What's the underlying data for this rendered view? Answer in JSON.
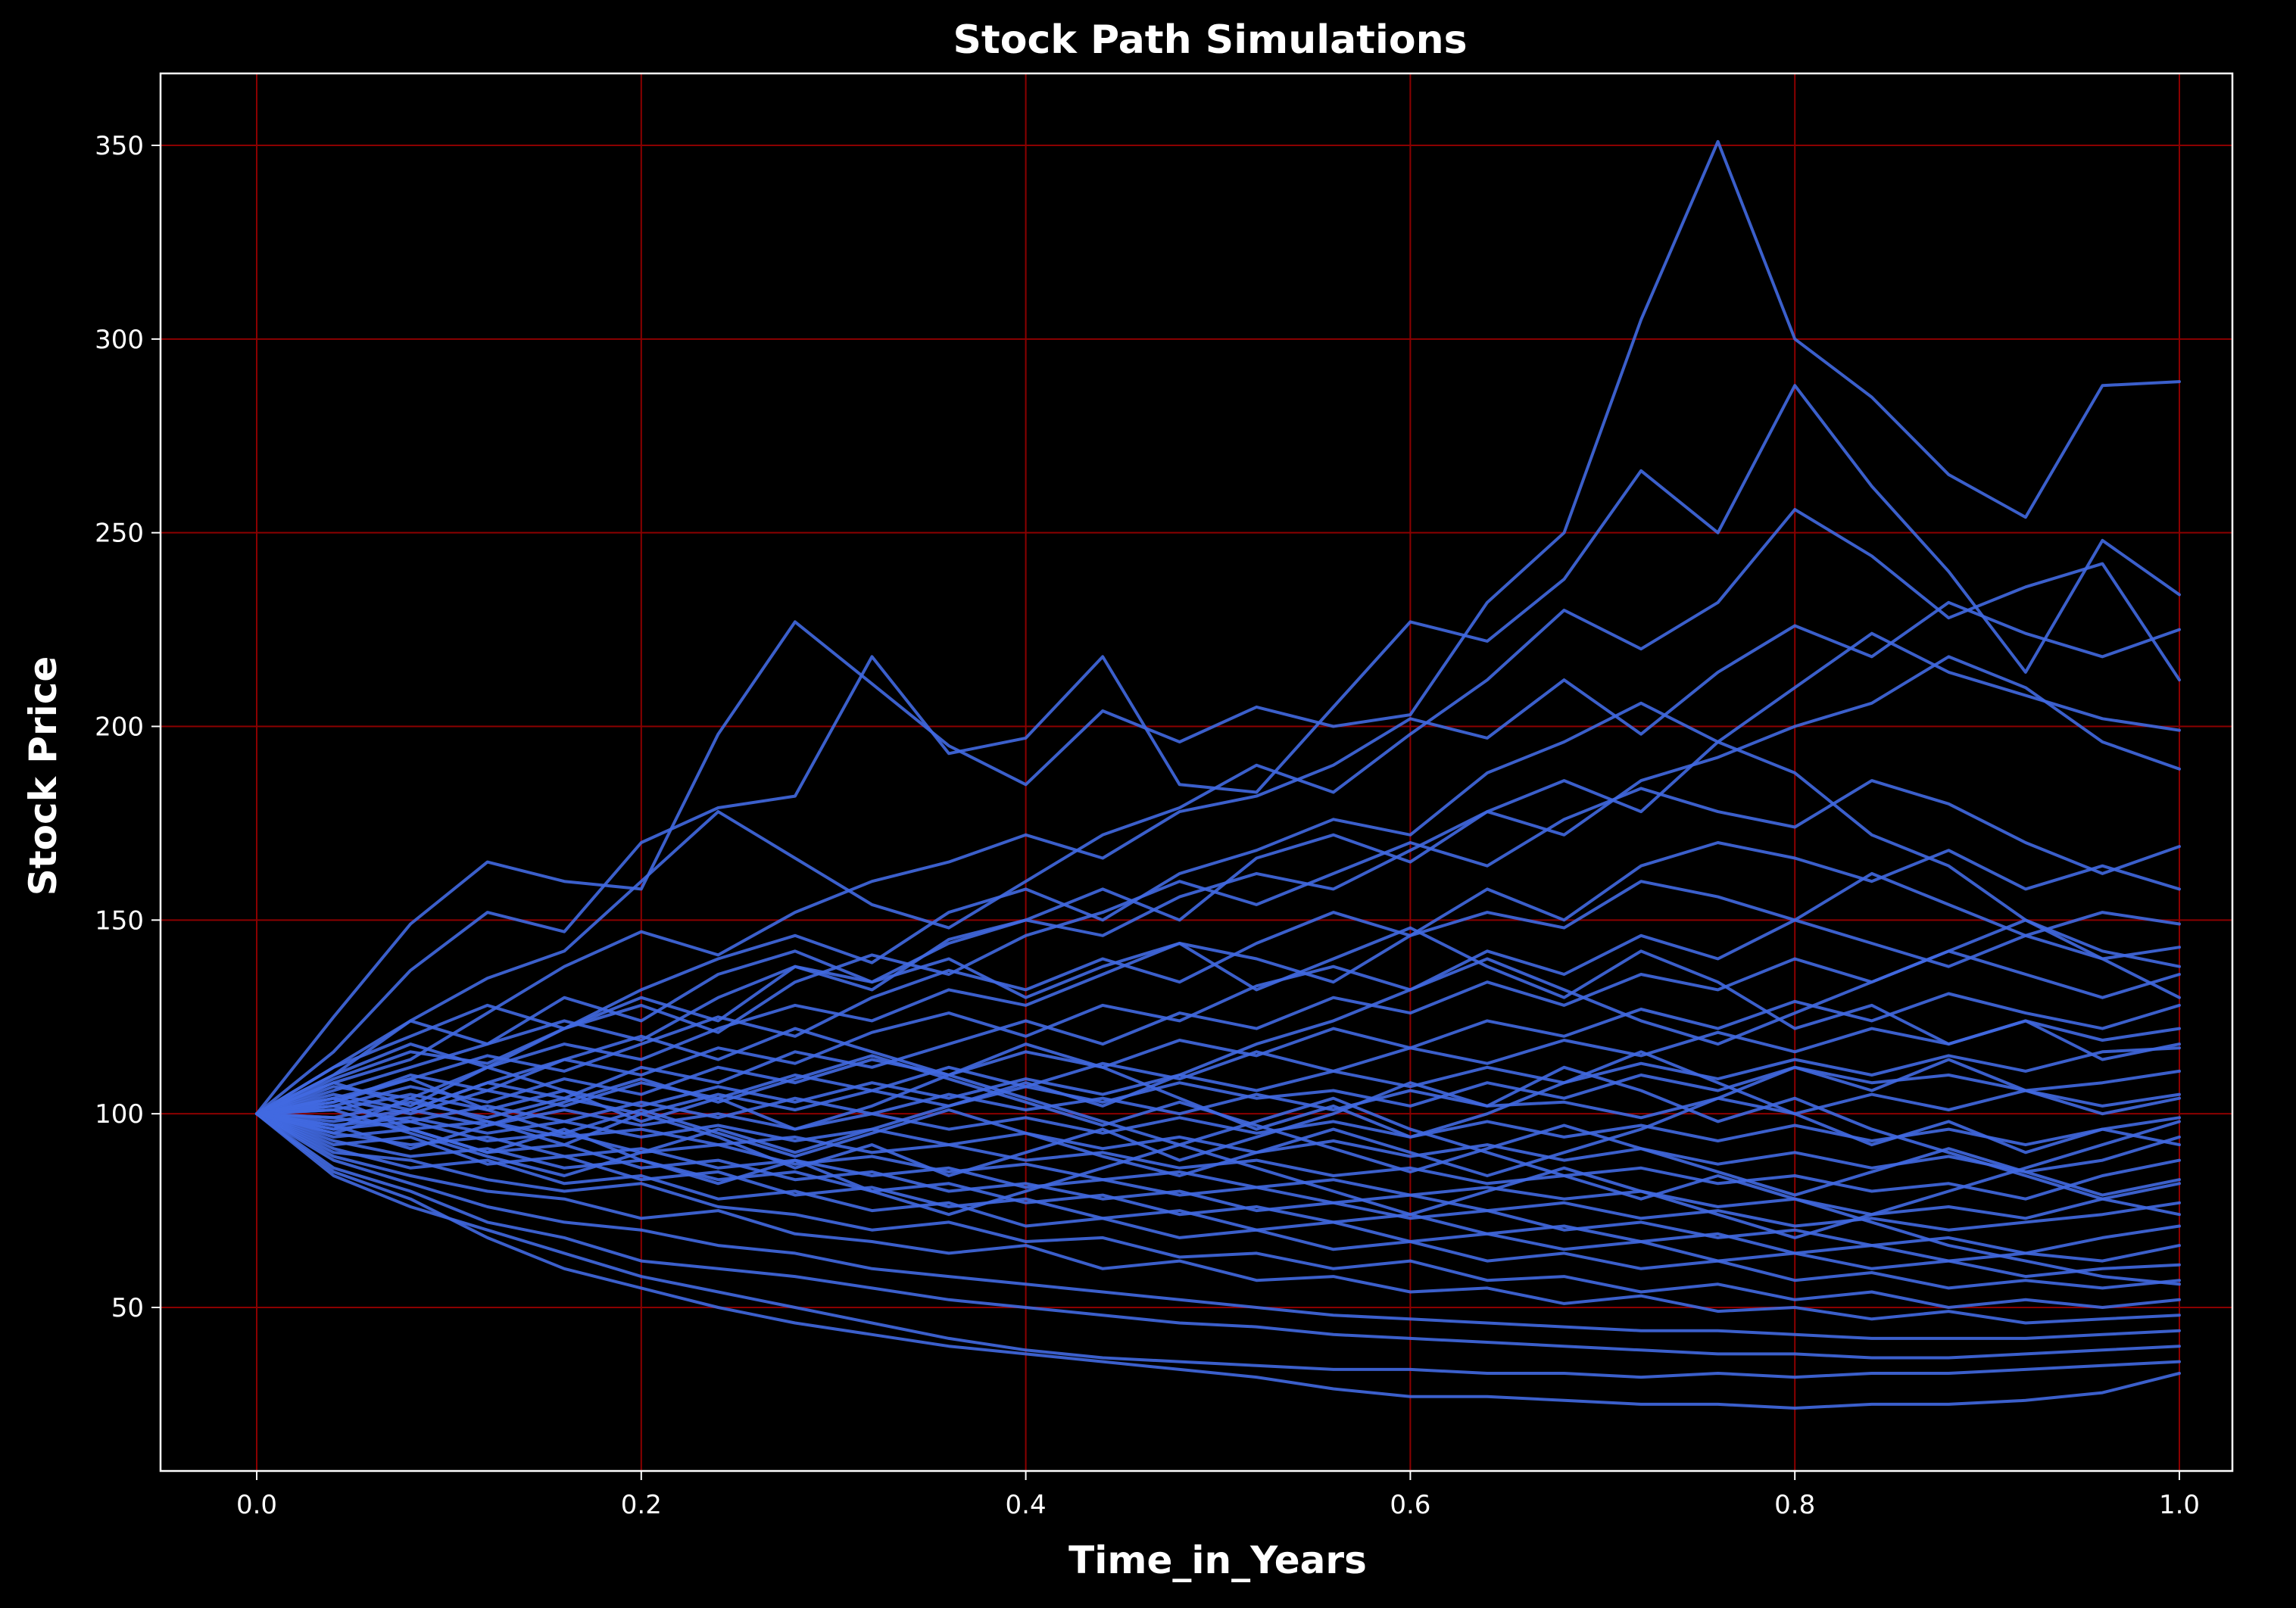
{
  "chart_data": {
    "type": "line",
    "title": "Stock Path Simulations",
    "xlabel": "Time_in_Years",
    "ylabel": "Stock Price",
    "xlim": [
      -0.05,
      1.05
    ],
    "ylim": [
      7,
      368
    ],
    "x_ticks": [
      0.0,
      0.2,
      0.4,
      0.6,
      0.8,
      1.0
    ],
    "x_tick_labels": [
      "0.0",
      "0.2",
      "0.4",
      "0.6",
      "0.8",
      "1.0"
    ],
    "y_ticks": [
      50,
      100,
      150,
      200,
      250,
      300,
      350
    ],
    "y_tick_labels": [
      "50",
      "100",
      "150",
      "200",
      "250",
      "300",
      "350"
    ],
    "grid": true,
    "colors": {
      "background": "#000000",
      "line": "#4169e1",
      "grid": "#8b0000",
      "text": "#ffffff",
      "spine": "#ffffff"
    },
    "x": [
      0.0,
      0.04,
      0.08,
      0.12,
      0.16,
      0.2,
      0.24,
      0.28,
      0.32,
      0.36,
      0.4,
      0.44,
      0.48,
      0.52,
      0.56,
      0.6,
      0.64,
      0.68,
      0.72,
      0.76,
      0.8,
      0.84,
      0.88,
      0.92,
      0.96,
      1.0
    ],
    "series": [
      {
        "values": [
          100,
          125,
          149,
          165,
          160,
          158,
          198,
          227,
          211,
          195,
          185,
          204,
          196,
          205,
          200,
          203,
          232,
          250,
          305,
          351,
          300,
          285,
          265,
          254,
          288,
          289
        ]
      },
      {
        "values": [
          100,
          116,
          137,
          152,
          147,
          170,
          179,
          182,
          218,
          193,
          197,
          218,
          185,
          183,
          205,
          227,
          222,
          238,
          266,
          250,
          288,
          262,
          240,
          214,
          248,
          234
        ]
      },
      {
        "values": [
          100,
          110,
          124,
          135,
          142,
          160,
          178,
          166,
          154,
          148,
          160,
          172,
          179,
          190,
          183,
          198,
          212,
          230,
          220,
          232,
          256,
          244,
          228,
          236,
          242,
          212
        ]
      },
      {
        "values": [
          100,
          108,
          114,
          126,
          138,
          147,
          141,
          152,
          160,
          165,
          172,
          166,
          178,
          182,
          190,
          202,
          197,
          212,
          198,
          214,
          226,
          218,
          232,
          224,
          218,
          225
        ]
      },
      {
        "values": [
          100,
          112,
          120,
          128,
          122,
          132,
          140,
          146,
          139,
          152,
          158,
          150,
          162,
          168,
          176,
          172,
          188,
          196,
          206,
          196,
          210,
          224,
          214,
          208,
          202,
          199
        ]
      },
      {
        "values": [
          100,
          106,
          112,
          118,
          124,
          119,
          130,
          138,
          134,
          144,
          150,
          146,
          156,
          162,
          158,
          168,
          178,
          172,
          186,
          192,
          200,
          206,
          218,
          210,
          196,
          189
        ]
      },
      {
        "values": [
          100,
          109,
          116,
          113,
          122,
          128,
          121,
          134,
          141,
          136,
          146,
          152,
          160,
          154,
          162,
          170,
          164,
          176,
          184,
          178,
          174,
          186,
          180,
          170,
          162,
          169
        ]
      },
      {
        "values": [
          100,
          104,
          109,
          115,
          111,
          118,
          125,
          120,
          130,
          137,
          132,
          140,
          134,
          144,
          152,
          146,
          158,
          150,
          164,
          170,
          166,
          160,
          168,
          158,
          164,
          158
        ]
      },
      {
        "values": [
          100,
          107,
          104,
          112,
          118,
          114,
          122,
          128,
          124,
          132,
          128,
          136,
          144,
          140,
          134,
          146,
          152,
          148,
          160,
          156,
          150,
          162,
          154,
          146,
          152,
          149
        ]
      },
      {
        "values": [
          100,
          103,
          110,
          106,
          114,
          110,
          117,
          113,
          121,
          126,
          120,
          128,
          124,
          133,
          138,
          132,
          142,
          136,
          146,
          140,
          150,
          144,
          138,
          146,
          140,
          143
        ]
      },
      {
        "values": [
          100,
          105,
          101,
          108,
          104,
          112,
          108,
          116,
          112,
          118,
          124,
          118,
          126,
          122,
          130,
          126,
          134,
          128,
          136,
          132,
          140,
          134,
          142,
          136,
          130,
          136
        ]
      },
      {
        "values": [
          100,
          102,
          107,
          103,
          109,
          105,
          112,
          108,
          114,
          110,
          116,
          112,
          119,
          115,
          122,
          117,
          124,
          120,
          127,
          122,
          129,
          124,
          131,
          126,
          122,
          128
        ]
      },
      {
        "values": [
          100,
          104,
          100,
          106,
          102,
          108,
          104,
          110,
          106,
          112,
          107,
          113,
          109,
          116,
          111,
          117,
          113,
          119,
          115,
          121,
          116,
          122,
          118,
          124,
          119,
          122
        ]
      },
      {
        "values": [
          100,
          101,
          105,
          101,
          106,
          102,
          107,
          103,
          108,
          104,
          109,
          105,
          110,
          106,
          111,
          107,
          112,
          108,
          113,
          109,
          114,
          110,
          115,
          111,
          116,
          117
        ]
      },
      {
        "values": [
          100,
          99,
          103,
          99,
          104,
          100,
          105,
          101,
          106,
          102,
          107,
          103,
          108,
          104,
          106,
          102,
          108,
          104,
          110,
          106,
          112,
          108,
          110,
          106,
          108,
          111
        ]
      },
      {
        "values": [
          100,
          102,
          98,
          102,
          98,
          103,
          99,
          104,
          100,
          105,
          101,
          104,
          100,
          105,
          101,
          106,
          102,
          103,
          99,
          104,
          100,
          105,
          101,
          106,
          102,
          105
        ]
      },
      {
        "values": [
          100,
          98,
          101,
          97,
          101,
          97,
          100,
          96,
          100,
          96,
          99,
          95,
          99,
          95,
          98,
          94,
          98,
          94,
          97,
          93,
          97,
          93,
          96,
          92,
          96,
          99
        ]
      },
      {
        "values": [
          100,
          97,
          99,
          95,
          98,
          94,
          97,
          93,
          96,
          92,
          95,
          91,
          94,
          90,
          93,
          89,
          92,
          88,
          91,
          87,
          90,
          86,
          89,
          85,
          88,
          94
        ]
      },
      {
        "values": [
          100,
          99,
          96,
          98,
          94,
          96,
          92,
          94,
          90,
          92,
          88,
          90,
          86,
          88,
          84,
          86,
          82,
          84,
          86,
          82,
          84,
          80,
          82,
          78,
          84,
          88
        ]
      },
      {
        "values": [
          100,
          96,
          98,
          93,
          95,
          90,
          92,
          87,
          89,
          85,
          87,
          83,
          85,
          81,
          83,
          79,
          81,
          78,
          80,
          76,
          78,
          74,
          76,
          73,
          78,
          82
        ]
      },
      {
        "values": [
          100,
          95,
          92,
          94,
          89,
          91,
          86,
          88,
          84,
          86,
          81,
          83,
          79,
          81,
          77,
          79,
          75,
          77,
          73,
          75,
          71,
          73,
          70,
          72,
          74,
          77
        ]
      },
      {
        "values": [
          100,
          94,
          96,
          90,
          92,
          86,
          88,
          83,
          85,
          80,
          82,
          78,
          80,
          75,
          77,
          73,
          75,
          70,
          72,
          68,
          70,
          66,
          68,
          64,
          68,
          71
        ]
      },
      {
        "values": [
          100,
          93,
          89,
          91,
          86,
          88,
          83,
          85,
          80,
          82,
          77,
          79,
          74,
          76,
          72,
          74,
          69,
          71,
          67,
          69,
          64,
          66,
          62,
          64,
          62,
          66
        ]
      },
      {
        "values": [
          100,
          92,
          94,
          87,
          89,
          83,
          85,
          79,
          81,
          76,
          78,
          73,
          75,
          70,
          72,
          67,
          69,
          65,
          67,
          62,
          64,
          60,
          62,
          58,
          60,
          61
        ]
      },
      {
        "values": [
          100,
          91,
          86,
          88,
          82,
          84,
          78,
          80,
          75,
          77,
          71,
          73,
          68,
          70,
          65,
          67,
          62,
          64,
          60,
          62,
          57,
          59,
          55,
          57,
          55,
          57
        ]
      },
      {
        "values": [
          100,
          90,
          88,
          83,
          80,
          82,
          76,
          74,
          70,
          72,
          67,
          68,
          63,
          64,
          60,
          62,
          57,
          58,
          54,
          56,
          52,
          54,
          50,
          52,
          50,
          52
        ]
      },
      {
        "values": [
          100,
          89,
          84,
          80,
          78,
          73,
          75,
          69,
          67,
          64,
          66,
          60,
          62,
          57,
          58,
          54,
          55,
          51,
          53,
          49,
          50,
          47,
          49,
          46,
          47,
          48
        ]
      },
      {
        "values": [
          100,
          88,
          82,
          76,
          72,
          70,
          66,
          64,
          60,
          58,
          56,
          54,
          52,
          50,
          48,
          47,
          46,
          45,
          44,
          44,
          43,
          42,
          42,
          42,
          43,
          44
        ]
      },
      {
        "values": [
          100,
          86,
          80,
          72,
          68,
          62,
          60,
          58,
          55,
          52,
          50,
          48,
          46,
          45,
          43,
          42,
          41,
          40,
          39,
          38,
          38,
          37,
          37,
          38,
          39,
          40
        ]
      },
      {
        "values": [
          100,
          84,
          76,
          70,
          64,
          58,
          54,
          50,
          46,
          42,
          39,
          37,
          36,
          35,
          34,
          34,
          33,
          33,
          32,
          33,
          32,
          33,
          33,
          34,
          35,
          36
        ]
      },
      {
        "values": [
          100,
          85,
          78,
          68,
          60,
          55,
          50,
          46,
          43,
          40,
          38,
          36,
          34,
          32,
          29,
          27,
          27,
          26,
          25,
          25,
          24,
          25,
          25,
          26,
          28,
          33
        ]
      },
      {
        "values": [
          100,
          110,
          118,
          112,
          122,
          130,
          124,
          138,
          132,
          145,
          150,
          158,
          150,
          166,
          172,
          165,
          178,
          186,
          178,
          196,
          188,
          172,
          164,
          150,
          140,
          130
        ]
      },
      {
        "values": [
          100,
          112,
          124,
          118,
          130,
          124,
          136,
          142,
          134,
          140,
          130,
          138,
          144,
          132,
          140,
          148,
          138,
          130,
          142,
          134,
          122,
          128,
          118,
          124,
          114,
          118
        ]
      },
      {
        "values": [
          100,
          108,
          102,
          112,
          106,
          98,
          104,
          96,
          102,
          110,
          118,
          112,
          104,
          96,
          102,
          94,
          100,
          108,
          116,
          108,
          100,
          92,
          98,
          90,
          96,
          92
        ]
      },
      {
        "values": [
          100,
          96,
          104,
          98,
          92,
          100,
          94,
          86,
          92,
          84,
          90,
          96,
          88,
          94,
          100,
          108,
          102,
          112,
          106,
          98,
          104,
          96,
          90,
          84,
          78,
          74
        ]
      },
      {
        "values": [
          100,
          104,
          96,
          90,
          96,
          88,
          82,
          88,
          80,
          74,
          80,
          86,
          92,
          86,
          80,
          74,
          80,
          86,
          80,
          74,
          68,
          74,
          80,
          86,
          92,
          98
        ]
      },
      {
        "values": [
          100,
          95,
          101,
          108,
          114,
          120,
          114,
          122,
          116,
          110,
          104,
          98,
          92,
          98,
          104,
          96,
          90,
          84,
          78,
          84,
          78,
          72,
          66,
          62,
          58,
          56
        ]
      },
      {
        "values": [
          100,
          101,
          95,
          89,
          84,
          90,
          96,
          90,
          96,
          102,
          108,
          102,
          110,
          118,
          124,
          132,
          140,
          132,
          124,
          118,
          126,
          134,
          142,
          150,
          142,
          138
        ]
      },
      {
        "values": [
          100,
          103,
          109,
          101,
          95,
          101,
          95,
          89,
          95,
          101,
          95,
          89,
          84,
          90,
          96,
          90,
          84,
          90,
          96,
          104,
          112,
          106,
          114,
          106,
          100,
          104
        ]
      },
      {
        "values": [
          100,
          97,
          91,
          97,
          103,
          109,
          103,
          109,
          115,
          109,
          103,
          97,
          103,
          97,
          91,
          85,
          91,
          97,
          91,
          85,
          79,
          85,
          91,
          85,
          79,
          83
        ]
      }
    ]
  }
}
